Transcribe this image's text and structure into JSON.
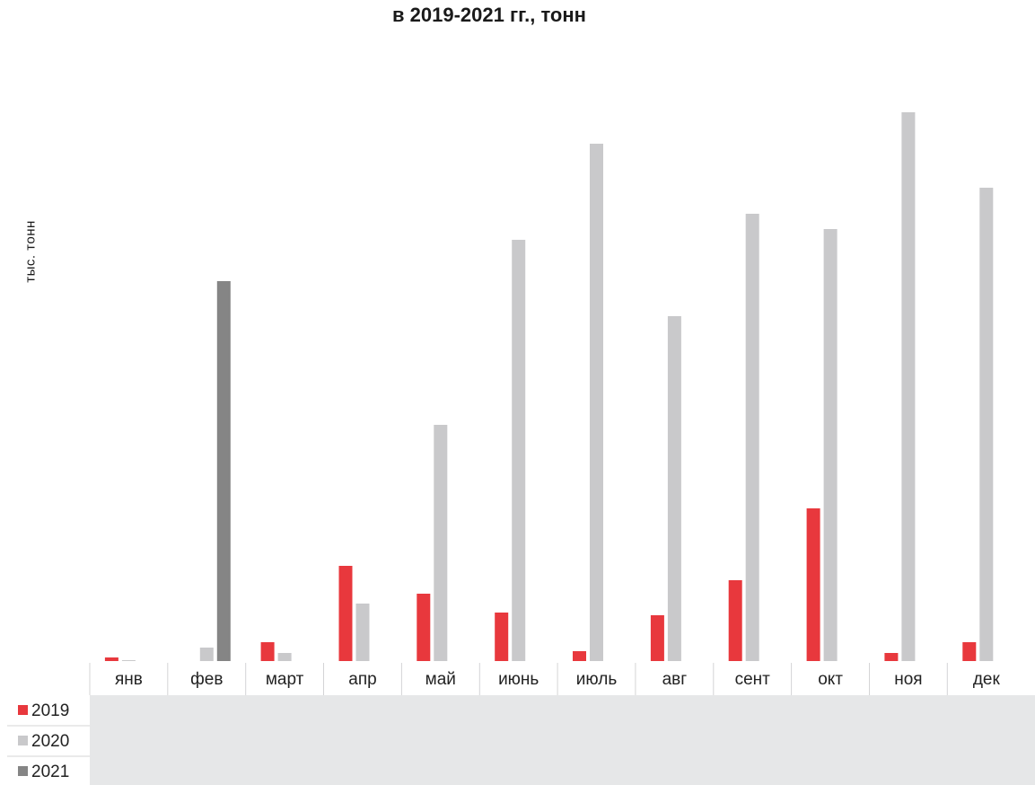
{
  "title": "в 2019-2021 гг., тонн",
  "ylabel": "тыс. тонн",
  "chart_data": {
    "type": "bar",
    "title": "в 2019-2021 гг., тонн",
    "ylabel": "тыс. тонн",
    "xlabel": "",
    "categories": [
      "янв",
      "фев",
      "март",
      "апр",
      "май",
      "июнь",
      "июль",
      "авг",
      "сент",
      "окт",
      "ноя",
      "дек"
    ],
    "ylim": [
      0,
      615
    ],
    "grid": false,
    "legend_position": "bottom-left",
    "series": [
      {
        "name": "2019",
        "color": "#e8383d",
        "values": [
          4,
          0,
          21,
          106,
          75,
          54,
          11,
          51,
          90,
          170,
          9,
          21
        ]
      },
      {
        "name": "2020",
        "color": "#c9c9cb",
        "values": [
          1,
          15,
          9,
          64,
          263,
          469,
          576,
          384,
          498,
          481,
          611,
          527
        ]
      },
      {
        "name": "2021",
        "color": "#858585",
        "values": [
          0,
          423,
          0,
          0,
          0,
          0,
          0,
          0,
          0,
          0,
          0,
          0
        ]
      }
    ]
  }
}
